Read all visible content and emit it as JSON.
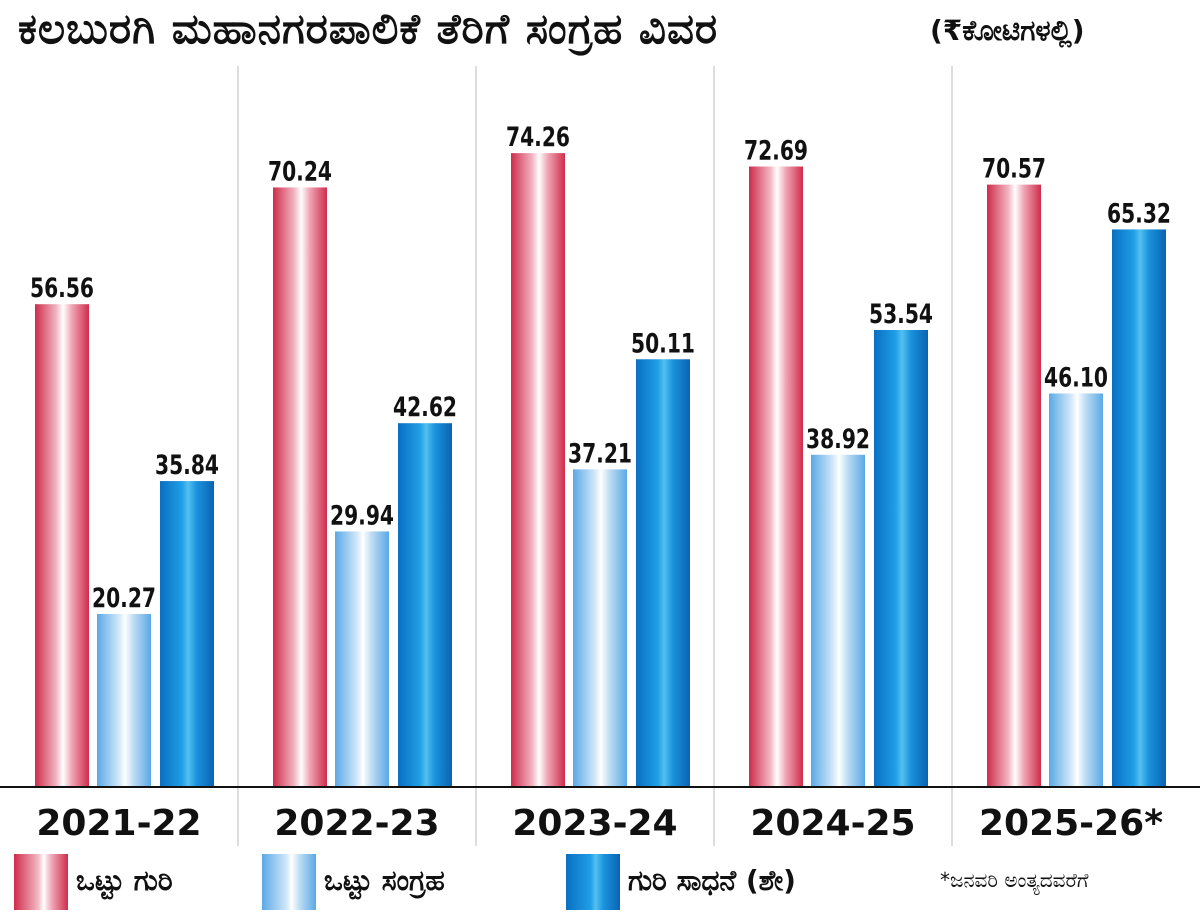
{
  "title": "ಕಲಬುರಗಿ ಮಹಾನಗರಪಾಲಿಕೆ ತೆರಿಗೆ ಸಂಗ್ರಹ ವಿವರ",
  "unit": "(₹ಕೋಟಿಗಳಲ್ಲಿ)",
  "footnote": "*ಜನವರಿ ಅಂತ್ಯದವರೆಗೆ",
  "colors": {
    "target": "#cf2c4b",
    "collection": "#7bbbea",
    "achievement": "#0a7fd0"
  },
  "chart_data": {
    "type": "bar",
    "categories": [
      "2021-22",
      "2022-23",
      "2023-24",
      "2024-25",
      "2025-26*"
    ],
    "series": [
      {
        "name": "ಒಟ್ಟು ಗುರಿ",
        "values": [
          56.56,
          70.24,
          74.26,
          72.69,
          70.57
        ],
        "labels": [
          "56.56",
          "70.24",
          "74.26",
          "72.69",
          "70.57"
        ]
      },
      {
        "name": "ಒಟ್ಟು ಸಂಗ್ರಹ",
        "values": [
          20.27,
          29.94,
          37.21,
          38.92,
          46.1
        ],
        "labels": [
          "20.27",
          "29.94",
          "37.21",
          "38.92",
          "46.10"
        ]
      },
      {
        "name": "ಗುರಿ ಸಾಧನೆ (ಶೇ)",
        "values": [
          35.84,
          42.62,
          50.11,
          53.54,
          65.32
        ],
        "labels": [
          "35.84",
          "42.62",
          "50.11",
          "53.54",
          "65.32"
        ]
      }
    ],
    "ylim": [
      0,
      80
    ],
    "grid": false,
    "legend": "bottom"
  }
}
